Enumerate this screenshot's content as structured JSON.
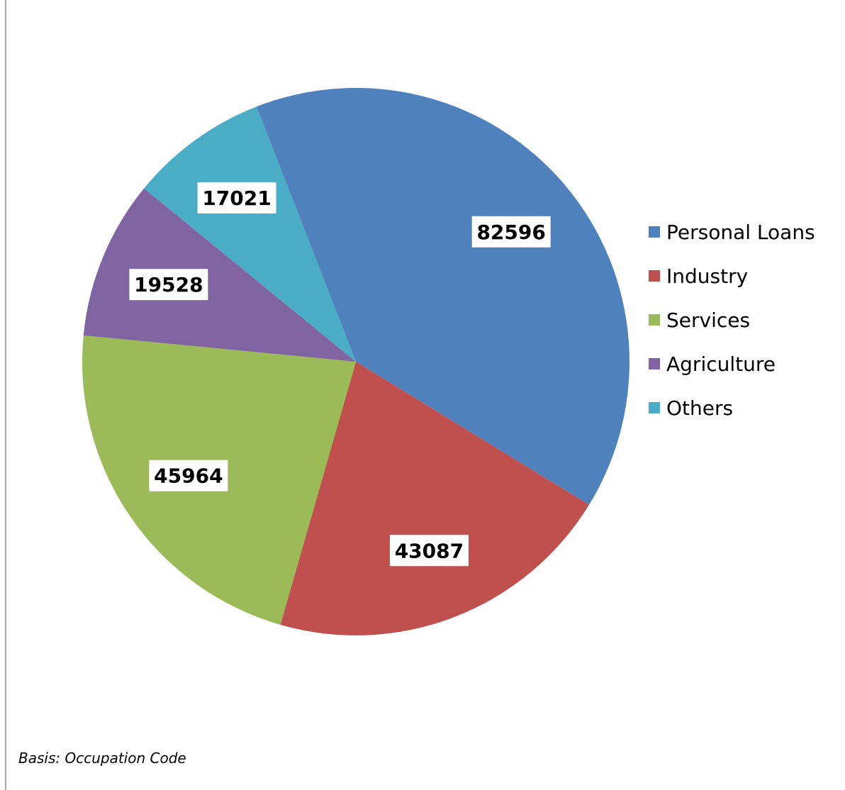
{
  "chart_data": {
    "type": "pie",
    "categories": [
      "Personal Loans",
      "Industry",
      "Services",
      "Agriculture",
      "Others"
    ],
    "values": [
      82596,
      43087,
      45964,
      19528,
      17021
    ],
    "colors": [
      "#4f81bd",
      "#c0504d",
      "#9bbb59",
      "#8064a2",
      "#4bacc6"
    ],
    "legend_position": "right",
    "data_labels": [
      "82596",
      "43087",
      "45964",
      "19528",
      "17021"
    ]
  },
  "footnote": "Basis: Occupation Code"
}
